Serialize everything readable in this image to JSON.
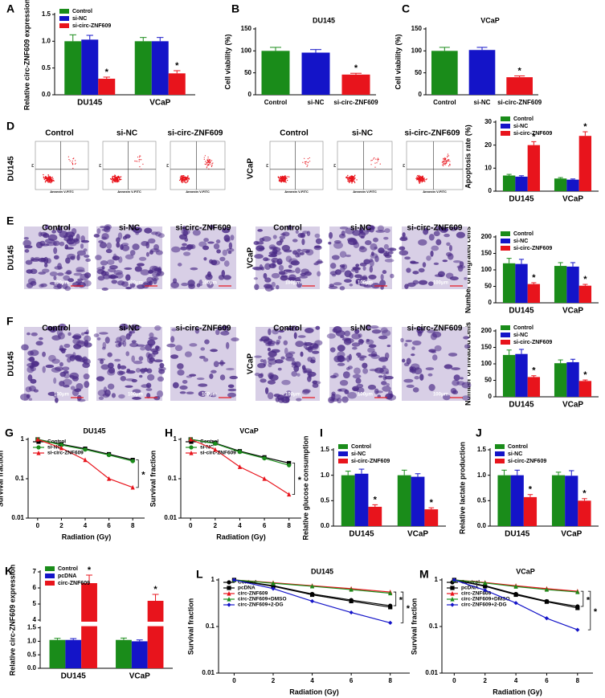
{
  "chart_data": [
    {
      "type": "bar",
      "panel": "A",
      "ylabel": "Relative circ-ZNF609 expression",
      "categories": [
        "DU145",
        "VCaP"
      ],
      "series": [
        {
          "name": "Control",
          "color": "#1a8c1a",
          "values": [
            1.0,
            1.0
          ],
          "errors": [
            0.12,
            0.07
          ]
        },
        {
          "name": "si-NC",
          "color": "#1414c8",
          "values": [
            1.03,
            1.0
          ],
          "errors": [
            0.08,
            0.07
          ]
        },
        {
          "name": "si-circ-ZNF609",
          "color": "#e8141c",
          "values": [
            0.3,
            0.4
          ],
          "errors": [
            0.03,
            0.05
          ],
          "annotations": [
            "*",
            "*"
          ]
        }
      ],
      "ylim": [
        0,
        1.5
      ],
      "yticks": [
        {
          "value": 0,
          "label": "0.0"
        },
        0.5,
        {
          "value": 1,
          "label": "1.0"
        },
        1.5
      ],
      "legend": "upper left"
    },
    {
      "type": "bar",
      "panel": "B",
      "title": "DU145",
      "ylabel": "Cell viability (%)",
      "categories": [
        "Control",
        "si-NC",
        "si-circ-ZNF609"
      ],
      "values": [
        100,
        96,
        46
      ],
      "errors": [
        8,
        7,
        3
      ],
      "colors": [
        "#1a8c1a",
        "#1414c8",
        "#e8141c"
      ],
      "annotations": [
        null,
        null,
        "*"
      ],
      "ylim": [
        0,
        150
      ],
      "yticks": [
        0,
        50,
        100,
        150
      ]
    },
    {
      "type": "bar",
      "panel": "C",
      "title": "VCaP",
      "ylabel": "Cell viability (%)",
      "categories": [
        "Control",
        "si-NC",
        "si-circ-ZNF609"
      ],
      "values": [
        100,
        102,
        40
      ],
      "errors": [
        8,
        6,
        3
      ],
      "colors": [
        "#1a8c1a",
        "#1414c8",
        "#e8141c"
      ],
      "annotations": [
        null,
        null,
        "*"
      ],
      "ylim": [
        0,
        150
      ],
      "yticks": [
        0,
        50,
        100,
        150
      ]
    },
    {
      "type": "bar",
      "ylabel": "Apoptosis rate (%)",
      "categories": [
        "DU145",
        "VCaP"
      ],
      "series": [
        {
          "name": "Control",
          "color": "#1a8c1a",
          "values": [
            6.8,
            5.5
          ],
          "errors": [
            0.5,
            0.4
          ]
        },
        {
          "name": "si-NC",
          "color": "#1414c8",
          "values": [
            6.3,
            5.0
          ],
          "errors": [
            0.4,
            0.3
          ]
        },
        {
          "name": "si-circ-ZNF609",
          "color": "#e8141c",
          "values": [
            20,
            24
          ],
          "errors": [
            1.5,
            1.8
          ],
          "annotations": [
            "*",
            "*"
          ]
        }
      ],
      "ylim": [
        0,
        30
      ],
      "yticks": [
        0,
        10,
        20,
        30
      ],
      "legend": "upper left"
    },
    {
      "type": "bar",
      "ylabel": "Number of migrated cells",
      "categories": [
        "DU145",
        "VCaP"
      ],
      "series": [
        {
          "name": "Control",
          "color": "#1a8c1a",
          "values": [
            120,
            112
          ],
          "errors": [
            15,
            10
          ]
        },
        {
          "name": "si-NC",
          "color": "#1414c8",
          "values": [
            118,
            110
          ],
          "errors": [
            14,
            12
          ]
        },
        {
          "name": "si-circ-ZNF609",
          "color": "#e8141c",
          "values": [
            57,
            52
          ],
          "errors": [
            4,
            4
          ],
          "annotations": [
            "*",
            "*"
          ]
        }
      ],
      "ylim": [
        0,
        200
      ],
      "yticks": [
        0,
        50,
        100,
        150,
        200
      ],
      "legend": "upper left"
    },
    {
      "type": "bar",
      "ylabel": "Number of invaded cells",
      "categories": [
        "DU145",
        "VCaP"
      ],
      "series": [
        {
          "name": "Control",
          "color": "#1a8c1a",
          "values": [
            127,
            102
          ],
          "errors": [
            15,
            10
          ]
        },
        {
          "name": "si-NC",
          "color": "#1414c8",
          "values": [
            130,
            105
          ],
          "errors": [
            14,
            9
          ]
        },
        {
          "name": "si-circ-ZNF609",
          "color": "#e8141c",
          "values": [
            60,
            48
          ],
          "errors": [
            4,
            3
          ],
          "annotations": [
            "*",
            "*"
          ]
        }
      ],
      "ylim": [
        0,
        200
      ],
      "yticks": [
        0,
        50,
        100,
        150,
        200
      ],
      "legend": "upper left"
    },
    {
      "type": "line",
      "panel": "G",
      "title": "DU145",
      "xlabel": "Radiation (Gy)",
      "ylabel": "Survival fraction",
      "yscale": "log",
      "x": [
        0,
        2,
        4,
        6,
        8
      ],
      "xlim": [
        -0.8,
        9
      ],
      "xticks": [
        0,
        2,
        4,
        6,
        8
      ],
      "ylim": [
        0.01,
        1
      ],
      "yticks": [
        0.01,
        0.1,
        1
      ],
      "series": [
        {
          "name": "Control",
          "color": "#000000",
          "marker": "square",
          "values": [
            1,
            0.75,
            0.58,
            0.42,
            0.3
          ]
        },
        {
          "name": "si-NC",
          "color": "#1a8c1a",
          "marker": "circle",
          "values": [
            1,
            0.72,
            0.55,
            0.4,
            0.28
          ]
        },
        {
          "name": "si-circ-ZNF609",
          "color": "#e8141c",
          "marker": "triangle",
          "values": [
            1,
            0.6,
            0.3,
            0.1,
            0.06
          ]
        }
      ],
      "annotations": [
        "*"
      ],
      "legend": "upper left"
    },
    {
      "type": "line",
      "panel": "H",
      "title": "VCaP",
      "xlabel": "Radiation (Gy)",
      "ylabel": "Survival fraction",
      "yscale": "log",
      "x": [
        0,
        2,
        4,
        6,
        8
      ],
      "xlim": [
        -0.8,
        9
      ],
      "xticks": [
        0,
        2,
        4,
        6,
        8
      ],
      "ylim": [
        0.01,
        1
      ],
      "yticks": [
        0.01,
        0.1,
        1
      ],
      "series": [
        {
          "name": "Control",
          "color": "#000000",
          "marker": "square",
          "values": [
            1,
            0.8,
            0.5,
            0.35,
            0.25
          ]
        },
        {
          "name": "si-NC",
          "color": "#1a8c1a",
          "marker": "circle",
          "values": [
            1,
            0.78,
            0.48,
            0.33,
            0.22
          ]
        },
        {
          "name": "si-circ-ZNF609",
          "color": "#e8141c",
          "marker": "triangle",
          "values": [
            1,
            0.55,
            0.2,
            0.1,
            0.04
          ]
        }
      ],
      "annotations": [
        "*"
      ],
      "legend": "upper left"
    },
    {
      "type": "bar",
      "panel": "I",
      "ylabel": "Relative glucose consumption",
      "categories": [
        "DU145",
        "VCaP"
      ],
      "series": [
        {
          "name": "Control",
          "color": "#1a8c1a",
          "values": [
            1.0,
            1.0
          ],
          "errors": [
            0.08,
            0.1
          ]
        },
        {
          "name": "si-NC",
          "color": "#1414c8",
          "values": [
            1.03,
            0.97
          ],
          "errors": [
            0.09,
            0.06
          ]
        },
        {
          "name": "si-circ-ZNF609",
          "color": "#e8141c",
          "values": [
            0.38,
            0.33
          ],
          "errors": [
            0.04,
            0.03
          ],
          "annotations": [
            "*",
            "*"
          ]
        }
      ],
      "ylim": [
        0,
        1.5
      ],
      "yticks": [
        {
          "value": 0,
          "label": "0.0"
        },
        0.5,
        {
          "value": 1,
          "label": "1.0"
        },
        1.5
      ],
      "legend": "upper left"
    },
    {
      "type": "bar",
      "panel": "J",
      "ylabel": "Relative lactate production",
      "categories": [
        "DU145",
        "VCaP"
      ],
      "series": [
        {
          "name": "Control",
          "color": "#1a8c1a",
          "values": [
            1.0,
            1.0
          ],
          "errors": [
            0.1,
            0.06
          ]
        },
        {
          "name": "si-NC",
          "color": "#1414c8",
          "values": [
            1.0,
            0.99
          ],
          "errors": [
            0.1,
            0.1
          ]
        },
        {
          "name": "si-circ-ZNF609",
          "color": "#e8141c",
          "values": [
            0.57,
            0.5
          ],
          "errors": [
            0.05,
            0.04
          ],
          "annotations": [
            "*",
            "*"
          ]
        }
      ],
      "ylim": [
        0,
        1.5
      ],
      "yticks": [
        {
          "value": 0,
          "label": "0.0"
        },
        0.5,
        {
          "value": 1,
          "label": "1.0"
        },
        1.5
      ],
      "legend": "upper left"
    },
    {
      "type": "bar",
      "panel": "K",
      "ylabel": "Relative circ-ZNF609 expression",
      "categories": [
        "DU145",
        "VCaP"
      ],
      "series": [
        {
          "name": "Control",
          "color": "#1a8c1a",
          "values": [
            1.05,
            1.05
          ],
          "errors": [
            0.06,
            0.07
          ]
        },
        {
          "name": "pcDNA",
          "color": "#1414c8",
          "values": [
            1.05,
            1.0
          ],
          "errors": [
            0.05,
            0.05
          ]
        },
        {
          "name": "circ-ZNF609",
          "color": "#e8141c",
          "values": [
            6.3,
            5.2
          ],
          "errors": [
            0.5,
            0.4
          ],
          "annotations": [
            "*",
            "*"
          ]
        }
      ],
      "ylim": [
        0,
        7
      ],
      "ybreak": [
        1.5,
        4
      ],
      "yticks": [
        {
          "value": 0,
          "label": "0.0"
        },
        0.5,
        {
          "value": 1,
          "label": "1.0"
        },
        1.5,
        4,
        5,
        6,
        7
      ],
      "legend": "upper left"
    },
    {
      "type": "line",
      "panel": "L",
      "title": "DU145",
      "xlabel": "Radiation (Gy)",
      "ylabel": "Survival fraction",
      "yscale": "log",
      "x": [
        0,
        2,
        4,
        6,
        8
      ],
      "xlim": [
        -0.8,
        9
      ],
      "xticks": [
        0,
        2,
        4,
        6,
        8
      ],
      "ylim": [
        0.01,
        1
      ],
      "yticks": [
        0.01,
        0.1,
        1
      ],
      "series": [
        {
          "name": "Control",
          "color": "#000000",
          "marker": "circle",
          "values": [
            1,
            0.75,
            0.5,
            0.37,
            0.28
          ]
        },
        {
          "name": "pcDNA",
          "color": "#000000",
          "marker": "square",
          "values": [
            1,
            0.73,
            0.48,
            0.35,
            0.26
          ]
        },
        {
          "name": "circ-ZNF609",
          "color": "#e8141c",
          "marker": "triangle",
          "values": [
            1,
            0.87,
            0.75,
            0.65,
            0.55
          ]
        },
        {
          "name": "circ-ZNF609+DMSO",
          "color": "#1a8c1a",
          "marker": "triangle",
          "values": [
            1,
            0.85,
            0.73,
            0.62,
            0.52
          ]
        },
        {
          "name": "circ-ZNF609+2-DG",
          "color": "#1414c8",
          "marker": "diamond",
          "values": [
            1,
            0.65,
            0.35,
            0.2,
            0.12
          ]
        }
      ],
      "annotations": [
        "*",
        "*"
      ],
      "legend": "upper left"
    },
    {
      "type": "line",
      "panel": "M",
      "title": "VCaP",
      "xlabel": "Radiation (Gy)",
      "ylabel": "Survival fraction",
      "yscale": "log",
      "x": [
        0,
        2,
        4,
        6,
        8
      ],
      "xlim": [
        -0.8,
        9
      ],
      "xticks": [
        0,
        2,
        4,
        6,
        8
      ],
      "ylim": [
        0.01,
        1
      ],
      "yticks": [
        0.01,
        0.1,
        1
      ],
      "series": [
        {
          "name": "Control",
          "color": "#000000",
          "marker": "circle",
          "values": [
            1,
            0.75,
            0.5,
            0.35,
            0.27
          ]
        },
        {
          "name": "pcDNA",
          "color": "#000000",
          "marker": "square",
          "values": [
            1,
            0.73,
            0.48,
            0.34,
            0.25
          ]
        },
        {
          "name": "circ-ZNF609",
          "color": "#e8141c",
          "marker": "triangle",
          "values": [
            1,
            0.88,
            0.75,
            0.65,
            0.57
          ]
        },
        {
          "name": "circ-ZNF609+DMSO",
          "color": "#1a8c1a",
          "marker": "triangle",
          "values": [
            1,
            0.86,
            0.72,
            0.62,
            0.55
          ]
        },
        {
          "name": "circ-ZNF609+2-DG",
          "color": "#1414c8",
          "marker": "diamond",
          "values": [
            1,
            0.6,
            0.32,
            0.15,
            0.085
          ]
        }
      ],
      "annotations": [
        "*",
        "*"
      ],
      "legend": "upper left"
    }
  ],
  "image_panels": [
    {
      "panel": "D",
      "columns": [
        "Control",
        "si-NC",
        "si-circ-ZNF609",
        "Control",
        "si-NC",
        "si-circ-ZNF609"
      ],
      "rows": [
        "DU145",
        "VCaP"
      ],
      "x_axis_label": "Annexin V-FITC",
      "y_axis_label": "PI"
    },
    {
      "panel": "E",
      "columns": [
        "Control",
        "si-NC",
        "si-circ-ZNF609",
        "Control",
        "si-NC",
        "si-circ-ZNF609"
      ],
      "rows": [
        "DU145",
        "VCaP"
      ],
      "scale_bar": "100μm"
    },
    {
      "panel": "F",
      "columns": [
        "Control",
        "si-NC",
        "si-circ-ZNF609",
        "Control",
        "si-NC",
        "si-circ-ZNF609"
      ],
      "rows": [
        "DU145",
        "VCaP"
      ],
      "scale_bar": "100μm"
    }
  ]
}
